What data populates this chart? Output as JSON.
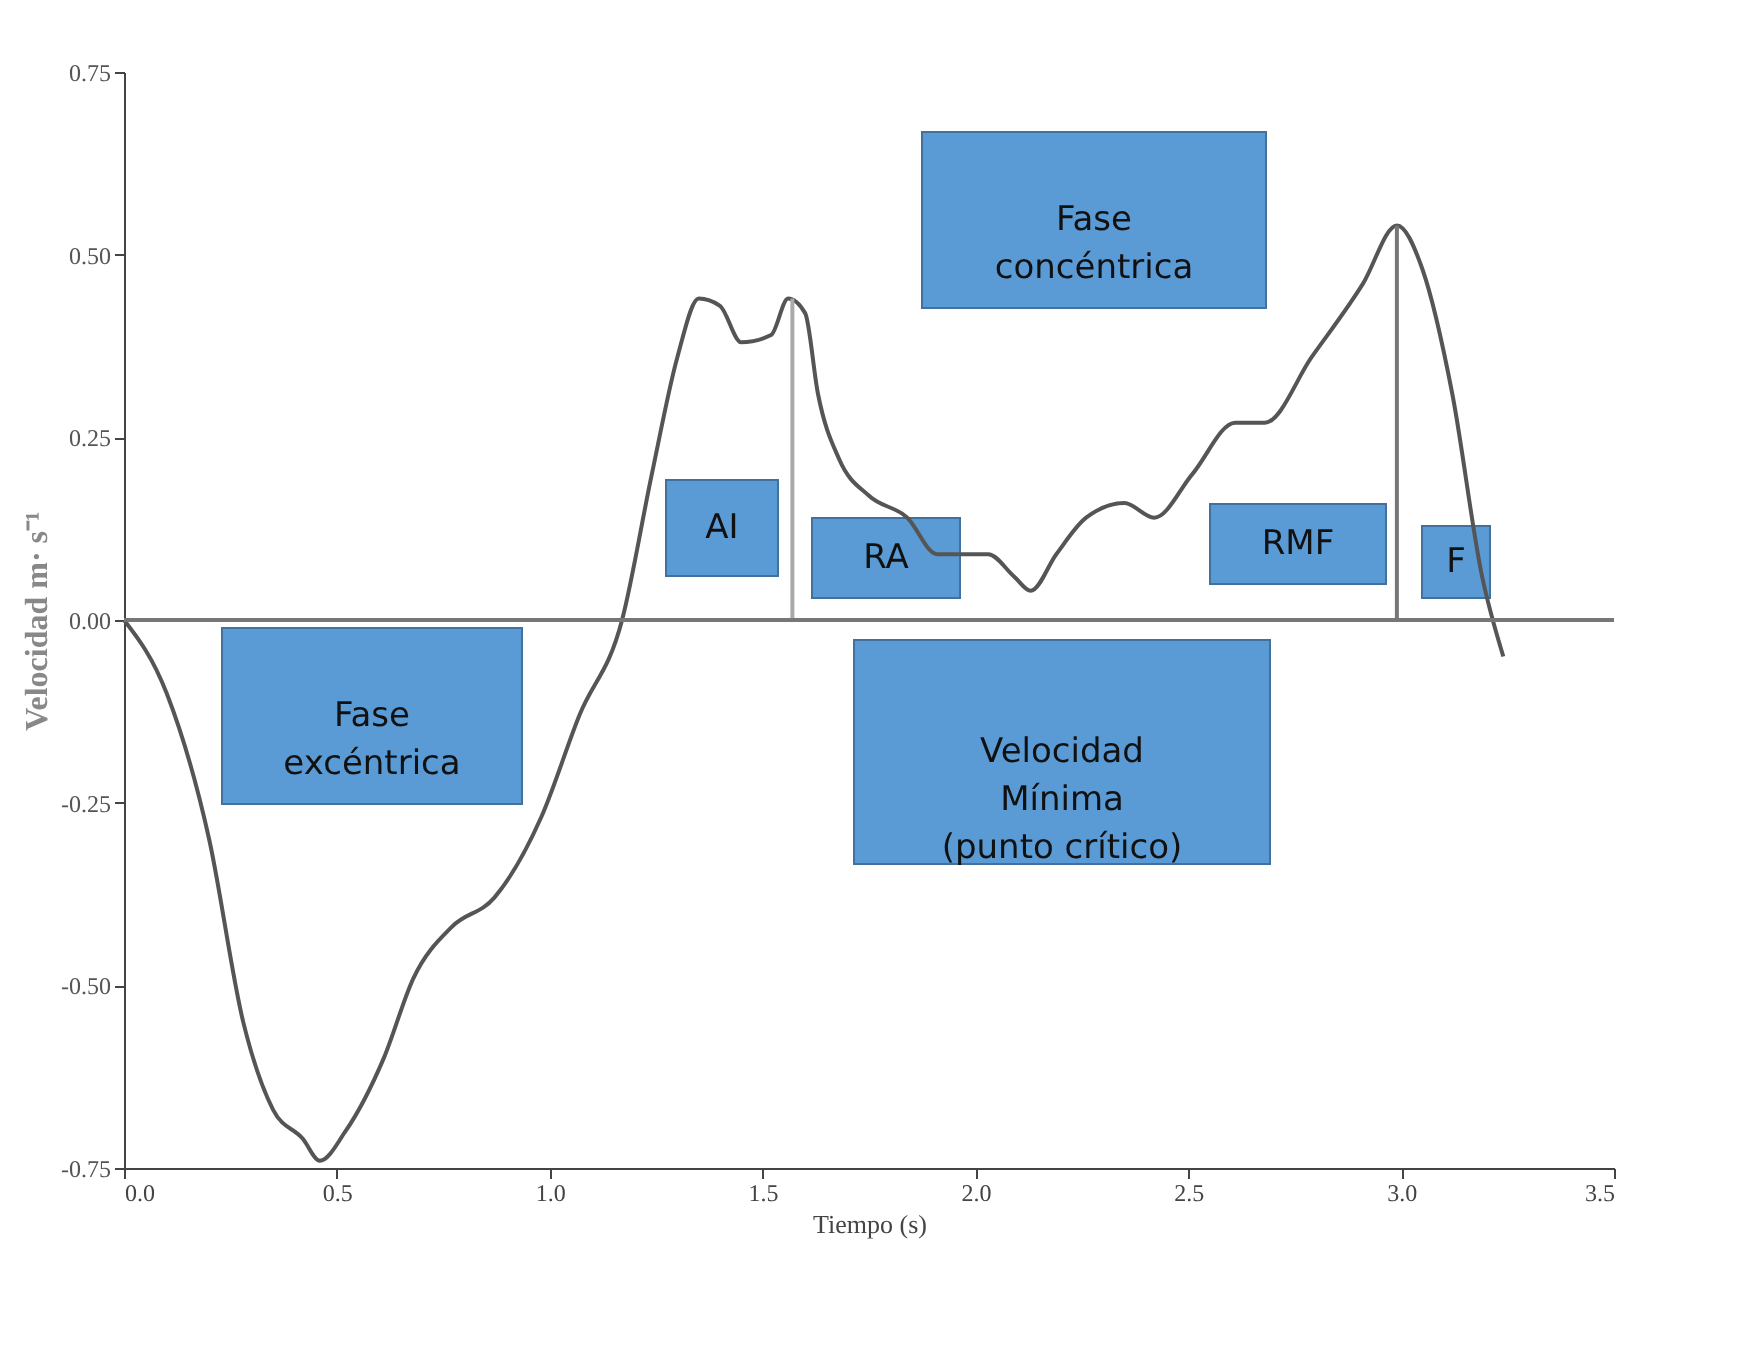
{
  "chart_data": {
    "type": "line",
    "xlabel": "Tiempo (s)",
    "ylabel": "Velocidad m· s⁻¹",
    "xlim": [
      0,
      3.5
    ],
    "ylim": [
      -0.75,
      0.75
    ],
    "xticks": [
      {
        "value": 0,
        "label": "0.0"
      },
      {
        "value": 0.5,
        "label": "0.5"
      },
      {
        "value": 1,
        "label": "1.0"
      },
      {
        "value": 1.5,
        "label": "1.5"
      },
      {
        "value": 2,
        "label": "2.0"
      },
      {
        "value": 2.5,
        "label": "2.5"
      },
      {
        "value": 3,
        "label": "3.0"
      },
      {
        "value": 3.5,
        "label": "3.5"
      }
    ],
    "yticks": [
      {
        "value": -0.75,
        "label": "-0.75"
      },
      {
        "value": -0.5,
        "label": "-0.50"
      },
      {
        "value": -0.25,
        "label": "-0.25"
      },
      {
        "value": 0,
        "label": "0.00"
      },
      {
        "value": 0.25,
        "label": "0.25"
      },
      {
        "value": 0.5,
        "label": "0.50"
      },
      {
        "value": 0.75,
        "label": "0.75"
      }
    ],
    "grid": false,
    "marker": "none",
    "line_style": "solid",
    "series": [
      {
        "color": "#555555",
        "x": [
          0,
          0.1,
          0.2,
          0.28,
          0.35,
          0.42,
          0.46,
          0.52,
          0.61,
          0.68,
          0.77,
          0.87,
          0.98,
          1.07,
          1.17,
          1.24,
          1.3,
          1.35,
          1.4,
          1.45,
          1.52,
          1.56,
          1.6,
          1.63,
          1.68,
          1.75,
          1.84,
          1.91,
          2.03,
          2.09,
          2.13,
          2.19,
          2.26,
          2.35,
          2.42,
          2.51,
          2.61,
          2.68,
          2.79,
          2.91,
          2.99,
          3.05,
          3.12,
          3.19,
          3.24
        ],
        "values": [
          0,
          -0.1,
          -0.3,
          -0.55,
          -0.67,
          -0.71,
          -0.74,
          -0.7,
          -0.6,
          -0.49,
          -0.42,
          -0.38,
          -0.27,
          -0.13,
          0,
          0.2,
          0.36,
          0.44,
          0.43,
          0.38,
          0.39,
          0.44,
          0.42,
          0.31,
          0.22,
          0.17,
          0.14,
          0.09,
          0.09,
          0.06,
          0.04,
          0.09,
          0.14,
          0.16,
          0.14,
          0.2,
          0.27,
          0.27,
          0.36,
          0.46,
          0.54,
          0.48,
          0.31,
          0.06,
          -0.05
        ]
      },
      {
        "color": "#aaaaaa",
        "x": [
          1.57,
          1.57
        ],
        "values": [
          0,
          0.44
        ]
      },
      {
        "color": "#777777",
        "x": [
          2.99,
          2.99
        ],
        "values": [
          0,
          0.54
        ]
      }
    ],
    "ref_lines": [
      {
        "axis": "y",
        "value": 0,
        "color": "#777777"
      }
    ],
    "annotations": [
      "Fase\nexcéntrica",
      "Fase\nconcéntrica",
      "AI",
      "RA",
      "RMF",
      "F",
      "Velocidad\nMínima\n(punto crítico)"
    ]
  }
}
